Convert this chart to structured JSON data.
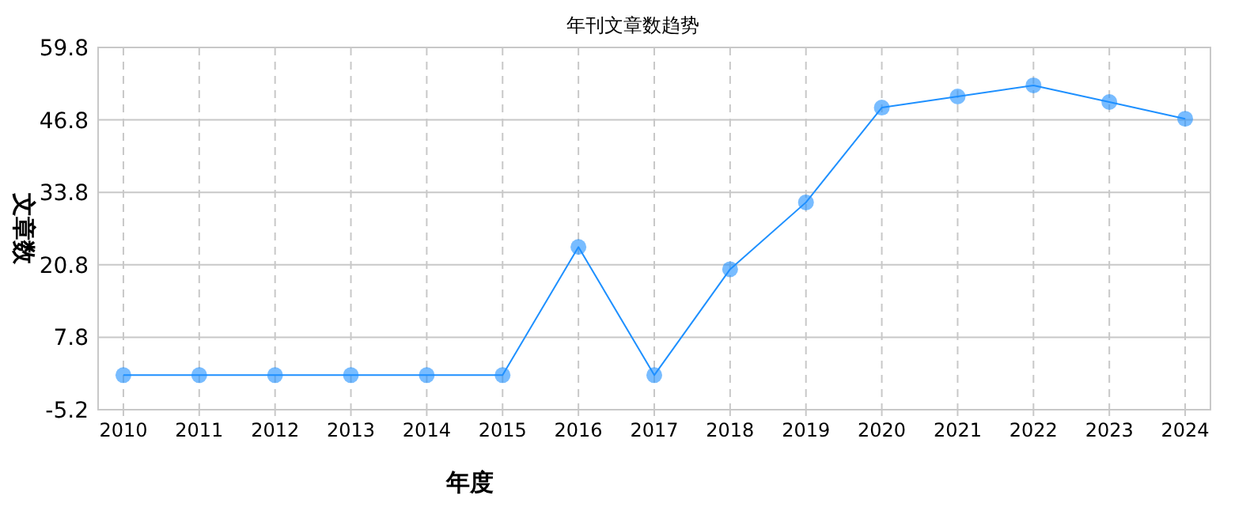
{
  "chart_data": {
    "type": "line",
    "title": "年刊文章数趋势",
    "xlabel": "年度",
    "ylabel": "文章数",
    "categories": [
      "2010",
      "2011",
      "2012",
      "2013",
      "2014",
      "2015",
      "2016",
      "2017",
      "2018",
      "2019",
      "2020",
      "2021",
      "2022",
      "2023",
      "2024"
    ],
    "series": [
      {
        "color": "#1e90ff",
        "values": [
          1,
          1,
          1,
          1,
          1,
          1,
          24,
          1,
          20,
          32,
          49,
          51,
          53,
          50,
          47
        ]
      }
    ],
    "ylim": [
      -5.2,
      59.8
    ],
    "yticks": [
      -5.2,
      7.8,
      20.8,
      33.8,
      46.8,
      59.8
    ],
    "grid": true,
    "marker": "circle",
    "line_style": "solid"
  }
}
